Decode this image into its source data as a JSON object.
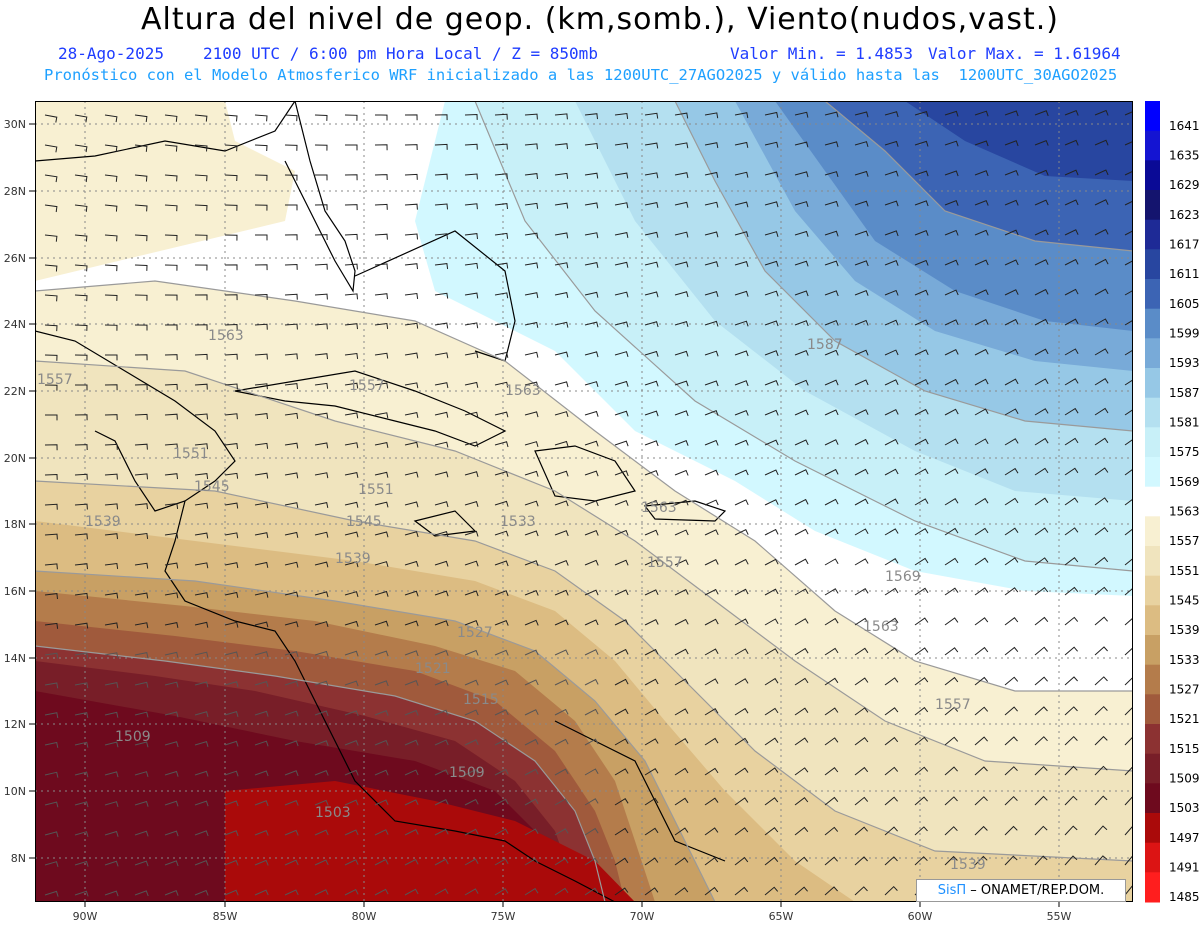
{
  "header": {
    "title": "Altura del nivel de geop. (km,somb.), Viento(nudos,vast.)",
    "date": "28-Ago-2025",
    "time": "2100 UTC / 6:00 pm Hora Local / Z = 850mb",
    "valor_min": "Valor Min. = 1.4853",
    "valor_max": "Valor Max. = 1.61964",
    "pronostico": "Pronóstico con el Modelo Atmosferico WRF inicializado a las 1200UTC_27AGO2025 y válido hasta las  1200UTC_30AGO2025"
  },
  "map": {
    "lat_labels": [
      "30N",
      "28N",
      "26N",
      "24N",
      "22N",
      "20N",
      "18N",
      "16N",
      "14N",
      "12N",
      "10N",
      "8N"
    ],
    "lon_labels": [
      "90W",
      "85W",
      "80W",
      "75W",
      "70W",
      "65W",
      "60W",
      "55W"
    ],
    "contour_labels": [
      "1563",
      "1557",
      "1557",
      "1563",
      "1551",
      "1551",
      "1545",
      "1545",
      "1539",
      "1539",
      "1533",
      "1527",
      "1521",
      "1515",
      "1509",
      "1509",
      "1503",
      "1557",
      "1563",
      "1557",
      "1563",
      "1569",
      "1587",
      "1539",
      "1563"
    ]
  },
  "colorbar": {
    "levels": [
      "1641",
      "1635",
      "1629",
      "1623",
      "1617",
      "1611",
      "1605",
      "1599",
      "1593",
      "1587",
      "1581",
      "1575",
      "1569",
      "1563",
      "1557",
      "1551",
      "1545",
      "1539",
      "1533",
      "1527",
      "1521",
      "1515",
      "1509",
      "1503",
      "1497",
      "1491",
      "1485"
    ],
    "colors": [
      "#0000ff",
      "#1414d2",
      "#0a0a96",
      "#14146e",
      "#1e2a96",
      "#2846a0",
      "#3c64b4",
      "#5a8cc8",
      "#78aad8",
      "#96c8e6",
      "#b4e0f0",
      "#c8f0f8",
      "#d2f8ff",
      "#ffffff",
      "#f8f0d2",
      "#f0e4be",
      "#e8d2a0",
      "#dcbc82",
      "#c8a064",
      "#b47c4b",
      "#a05a3c",
      "#8c3232",
      "#781e28",
      "#6e0a1e",
      "#aa0a0a",
      "#dc1414",
      "#ff1e1e"
    ]
  },
  "credit": {
    "sis": "SisΠ",
    "rest": " – ONAMET/REP.DOM."
  }
}
